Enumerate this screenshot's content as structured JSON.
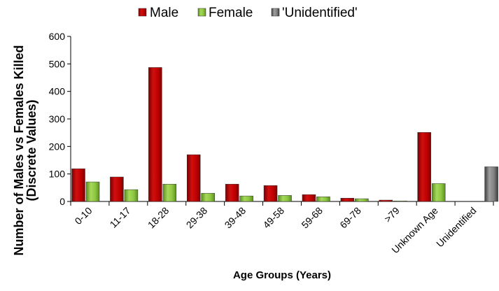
{
  "chart_data": {
    "type": "bar",
    "categories": [
      "0-10",
      "11-17",
      "18-28",
      "29-38",
      "39-48",
      "49-58",
      "59-68",
      "69-78",
      ">79",
      "Unknown Age",
      "Unidentified"
    ],
    "series": [
      {
        "name": "Male",
        "color": "#c00000",
        "values": [
          119,
          89,
          487,
          170,
          63,
          58,
          25,
          12,
          5,
          251,
          0
        ]
      },
      {
        "name": "Female",
        "color": "#8cc63f",
        "values": [
          71,
          43,
          63,
          30,
          20,
          22,
          17,
          10,
          2,
          65,
          0
        ]
      },
      {
        "name": "'Unidentified'",
        "color": "#808080",
        "values": [
          0,
          0,
          0,
          0,
          0,
          0,
          0,
          0,
          0,
          0,
          126
        ]
      }
    ],
    "xlabel": "Age Groups (Years)",
    "ylabel_line1": "Number of Males vs Females Killed",
    "ylabel_line2": "(Discrete Values)",
    "ylim": [
      0,
      600
    ],
    "yticks": [
      0,
      100,
      200,
      300,
      400,
      500,
      600
    ],
    "grid": false,
    "legend_position": "top"
  }
}
